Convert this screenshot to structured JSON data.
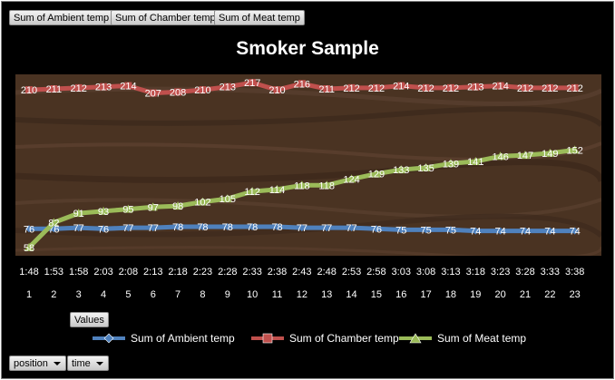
{
  "field_buttons": [
    "Sum of Ambient temp",
    "Sum of Chamber temp",
    "Sum of Meat temp"
  ],
  "values_button": "Values",
  "axis_fields": [
    "position",
    "time"
  ],
  "colors": {
    "ambient": "#4f81bd",
    "chamber": "#c0504d",
    "meat": "#9bbb59"
  },
  "chart_data": {
    "type": "line",
    "title": "Smoker Sample",
    "x_times": [
      "1:48",
      "1:53",
      "1:58",
      "2:03",
      "2:08",
      "2:13",
      "2:18",
      "2:23",
      "2:28",
      "2:33",
      "2:38",
      "2:43",
      "2:48",
      "2:53",
      "2:58",
      "3:03",
      "3:08",
      "3:13",
      "3:18",
      "3:23",
      "3:28",
      "3:33",
      "3:38"
    ],
    "x_positions": [
      "1",
      "2",
      "3",
      "4",
      "5",
      "6",
      "7",
      "8",
      "9",
      "10",
      "11",
      "12",
      "13",
      "14",
      "15",
      "16",
      "17",
      "18",
      "19",
      "20",
      "21",
      "22",
      "23"
    ],
    "ylim": [
      50,
      225
    ],
    "grid": false,
    "legend_position": "bottom",
    "series": [
      {
        "name": "Sum of Ambient temp",
        "color_key": "ambient",
        "values": [
          76,
          76,
          77,
          76,
          77,
          77,
          78,
          78,
          78,
          78,
          78,
          77,
          77,
          77,
          76,
          75,
          75,
          75,
          74,
          74,
          74,
          74,
          74
        ]
      },
      {
        "name": "Sum of Chamber temp",
        "color_key": "chamber",
        "values": [
          210,
          211,
          212,
          213,
          214,
          207,
          208,
          210,
          213,
          217,
          210,
          216,
          211,
          212,
          212,
          214,
          212,
          212,
          213,
          214,
          212,
          212,
          212
        ]
      },
      {
        "name": "Sum of Meat temp",
        "color_key": "meat",
        "values": [
          58,
          82,
          91,
          93,
          95,
          97,
          98,
          102,
          105,
          112,
          114,
          118,
          118,
          124,
          129,
          133,
          135,
          139,
          141,
          146,
          147,
          149,
          152
        ]
      }
    ]
  }
}
